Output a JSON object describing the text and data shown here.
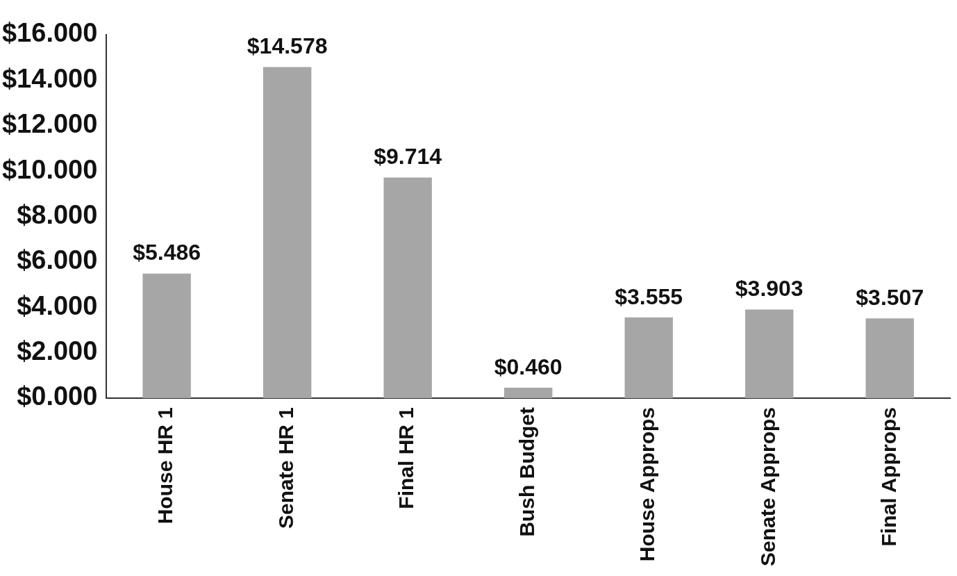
{
  "chart_data": {
    "type": "bar",
    "categories": [
      "House HR 1",
      "Senate HR 1",
      "Final HR 1",
      "Bush Budget",
      "House Approps",
      "Senate Approps",
      "Final Approps"
    ],
    "values": [
      5.486,
      14.578,
      9.714,
      0.46,
      3.555,
      3.903,
      3.507
    ],
    "value_labels": [
      "$5.486",
      "$14.578",
      "$9.714",
      "$0.460",
      "$3.555",
      "$3.903",
      "$3.507"
    ],
    "color": "#a6a6a6",
    "ylim": [
      0,
      16
    ],
    "yticks": [
      {
        "value": 0,
        "label": "$0.000"
      },
      {
        "value": 2,
        "label": "$2.000"
      },
      {
        "value": 4,
        "label": "$4.000"
      },
      {
        "value": 6,
        "label": "$6.000"
      },
      {
        "value": 8,
        "label": "$8.000"
      },
      {
        "value": 10,
        "label": "$10.000"
      },
      {
        "value": 12,
        "label": "$12.000"
      },
      {
        "value": 14,
        "label": "$14.000"
      },
      {
        "value": 16,
        "label": "$16.000"
      }
    ],
    "grid": false,
    "legend": false
  }
}
